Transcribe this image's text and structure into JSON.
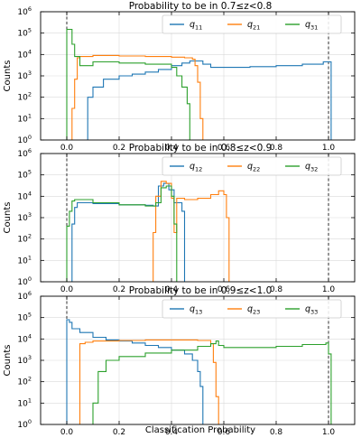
{
  "figure": {
    "xlabel": "Classification Probability",
    "dashed_vlines": [
      0.0,
      1.0
    ]
  },
  "colors": {
    "q1": "#1f77b4",
    "q2": "#ff7f0e",
    "q3": "#2ca02c"
  },
  "chart_data": [
    {
      "type": "histogram",
      "title": "Probability to be in 0.7≤z<0.8",
      "ylabel": "Counts",
      "yscale": "log",
      "ylim": [
        1,
        1000000
      ],
      "xlim": [
        -0.1,
        1.1
      ],
      "xticks": [
        "0.0",
        "0.2",
        "0.4",
        "0.6",
        "0.8",
        "1.0"
      ],
      "yticks": [
        "10",
        "10",
        "10",
        "10",
        "10",
        "10",
        "10"
      ],
      "ytick_exponents": [
        "0",
        "1",
        "2",
        "3",
        "4",
        "5",
        "6"
      ],
      "legend_position": "top-right",
      "grid": true,
      "series": [
        {
          "name": "q",
          "sub": "11",
          "color": "#1f77b4",
          "points": [
            [
              0.08,
              1
            ],
            [
              0.08,
              100
            ],
            [
              0.1,
              300
            ],
            [
              0.14,
              700
            ],
            [
              0.2,
              1000
            ],
            [
              0.25,
              1200
            ],
            [
              0.3,
              1500
            ],
            [
              0.35,
              2000
            ],
            [
              0.4,
              3000
            ],
            [
              0.44,
              4000
            ],
            [
              0.47,
              5000
            ],
            [
              0.5,
              5000
            ],
            [
              0.52,
              3500
            ],
            [
              0.55,
              2500
            ],
            [
              0.6,
              2500
            ],
            [
              0.7,
              2700
            ],
            [
              0.8,
              3000
            ],
            [
              0.9,
              3500
            ],
            [
              0.98,
              4500
            ],
            [
              1.01,
              4000
            ],
            [
              1.01,
              1
            ]
          ]
        },
        {
          "name": "q",
          "sub": "21",
          "color": "#ff7f0e",
          "points": [
            [
              0.02,
              1
            ],
            [
              0.02,
              30
            ],
            [
              0.03,
              700
            ],
            [
              0.04,
              7000
            ],
            [
              0.05,
              8000
            ],
            [
              0.1,
              9000
            ],
            [
              0.2,
              8500
            ],
            [
              0.3,
              8000
            ],
            [
              0.4,
              7500
            ],
            [
              0.45,
              7000
            ],
            [
              0.48,
              6000
            ],
            [
              0.49,
              3000
            ],
            [
              0.5,
              500
            ],
            [
              0.51,
              10
            ],
            [
              0.52,
              1
            ]
          ]
        },
        {
          "name": "q",
          "sub": "31",
          "color": "#2ca02c",
          "points": [
            [
              0.0,
              1
            ],
            [
              0.0,
              150000
            ],
            [
              0.01,
              150000
            ],
            [
              0.02,
              30000
            ],
            [
              0.03,
              8000
            ],
            [
              0.05,
              3000
            ],
            [
              0.1,
              4500
            ],
            [
              0.2,
              4000
            ],
            [
              0.3,
              3500
            ],
            [
              0.38,
              3500
            ],
            [
              0.4,
              2500
            ],
            [
              0.42,
              1000
            ],
            [
              0.44,
              300
            ],
            [
              0.46,
              50
            ],
            [
              0.47,
              1
            ]
          ]
        }
      ]
    },
    {
      "type": "histogram",
      "title": "Probability to be in 0.8≤z<0.9",
      "ylabel": "Counts",
      "yscale": "log",
      "ylim": [
        1,
        1000000
      ],
      "xlim": [
        -0.1,
        1.1
      ],
      "xticks": [
        "0.0",
        "0.2",
        "0.4",
        "0.6",
        "0.8",
        "1.0"
      ],
      "yticks": [
        "10",
        "10",
        "10",
        "10",
        "10",
        "10",
        "10"
      ],
      "ytick_exponents": [
        "0",
        "1",
        "2",
        "3",
        "4",
        "5",
        "6"
      ],
      "legend_position": "top-right",
      "grid": true,
      "series": [
        {
          "name": "q",
          "sub": "12",
          "color": "#1f77b4",
          "points": [
            [
              0.02,
              1
            ],
            [
              0.02,
              500
            ],
            [
              0.03,
              3000
            ],
            [
              0.04,
              5000
            ],
            [
              0.1,
              4500
            ],
            [
              0.2,
              4000
            ],
            [
              0.3,
              3800
            ],
            [
              0.33,
              3500
            ],
            [
              0.35,
              30000
            ],
            [
              0.37,
              40000
            ],
            [
              0.39,
              20000
            ],
            [
              0.41,
              5000
            ],
            [
              0.43,
              5000
            ],
            [
              0.44,
              2000
            ],
            [
              0.45,
              50
            ],
            [
              0.45,
              1
            ]
          ]
        },
        {
          "name": "q",
          "sub": "22",
          "color": "#ff7f0e",
          "points": [
            [
              0.33,
              1
            ],
            [
              0.33,
              200
            ],
            [
              0.34,
              10000
            ],
            [
              0.36,
              50000
            ],
            [
              0.38,
              40000
            ],
            [
              0.4,
              8000
            ],
            [
              0.41,
              200
            ],
            [
              0.42,
              8000
            ],
            [
              0.45,
              7000
            ],
            [
              0.5,
              8000
            ],
            [
              0.55,
              12000
            ],
            [
              0.58,
              18000
            ],
            [
              0.6,
              12000
            ],
            [
              0.61,
              1000
            ],
            [
              0.62,
              10
            ],
            [
              0.62,
              1
            ]
          ]
        },
        {
          "name": "q",
          "sub": "32",
          "color": "#2ca02c",
          "points": [
            [
              0.0,
              1
            ],
            [
              0.0,
              400
            ],
            [
              0.01,
              2000
            ],
            [
              0.02,
              6000
            ],
            [
              0.03,
              7000
            ],
            [
              0.1,
              5000
            ],
            [
              0.2,
              4000
            ],
            [
              0.3,
              3500
            ],
            [
              0.34,
              5000
            ],
            [
              0.36,
              25000
            ],
            [
              0.38,
              30000
            ],
            [
              0.4,
              10000
            ],
            [
              0.41,
              500
            ],
            [
              0.42,
              10
            ],
            [
              0.42,
              1
            ]
          ]
        }
      ]
    },
    {
      "type": "histogram",
      "title": "Probability to be in 0.9≤z<1.0",
      "ylabel": "Counts",
      "yscale": "log",
      "ylim": [
        1,
        1000000
      ],
      "xlim": [
        -0.1,
        1.1
      ],
      "xticks": [
        "0.0",
        "0.2",
        "0.4",
        "0.6",
        "0.8",
        "1.0"
      ],
      "yticks": [
        "10",
        "10",
        "10",
        "10",
        "10",
        "10",
        "10"
      ],
      "ytick_exponents": [
        "0",
        "1",
        "2",
        "3",
        "4",
        "5",
        "6"
      ],
      "legend_position": "top-right",
      "grid": true,
      "series": [
        {
          "name": "q",
          "sub": "13",
          "color": "#1f77b4",
          "points": [
            [
              0.0,
              1
            ],
            [
              0.0,
              80000
            ],
            [
              0.01,
              60000
            ],
            [
              0.02,
              30000
            ],
            [
              0.05,
              20000
            ],
            [
              0.1,
              12000
            ],
            [
              0.15,
              9000
            ],
            [
              0.2,
              8000
            ],
            [
              0.25,
              6500
            ],
            [
              0.3,
              5000
            ],
            [
              0.35,
              4000
            ],
            [
              0.4,
              3000
            ],
            [
              0.45,
              2000
            ],
            [
              0.48,
              1000
            ],
            [
              0.5,
              300
            ],
            [
              0.51,
              60
            ],
            [
              0.52,
              5
            ],
            [
              0.52,
              1
            ]
          ]
        },
        {
          "name": "q",
          "sub": "23",
          "color": "#ff7f0e",
          "points": [
            [
              0.05,
              1
            ],
            [
              0.05,
              6000
            ],
            [
              0.07,
              7000
            ],
            [
              0.1,
              8000
            ],
            [
              0.2,
              8500
            ],
            [
              0.3,
              9000
            ],
            [
              0.4,
              9000
            ],
            [
              0.5,
              8500
            ],
            [
              0.55,
              6000
            ],
            [
              0.56,
              800
            ],
            [
              0.57,
              20
            ],
            [
              0.58,
              1
            ]
          ]
        },
        {
          "name": "q",
          "sub": "33",
          "color": "#2ca02c",
          "points": [
            [
              0.1,
              1
            ],
            [
              0.1,
              10
            ],
            [
              0.12,
              300
            ],
            [
              0.15,
              1000
            ],
            [
              0.2,
              1500
            ],
            [
              0.3,
              2200
            ],
            [
              0.4,
              3000
            ],
            [
              0.5,
              4500
            ],
            [
              0.55,
              6000
            ],
            [
              0.57,
              8000
            ],
            [
              0.58,
              5000
            ],
            [
              0.6,
              4000
            ],
            [
              0.7,
              4000
            ],
            [
              0.8,
              4500
            ],
            [
              0.9,
              5500
            ],
            [
              0.99,
              6500
            ],
            [
              1.0,
              2000
            ],
            [
              1.01,
              1
            ]
          ]
        }
      ]
    }
  ]
}
